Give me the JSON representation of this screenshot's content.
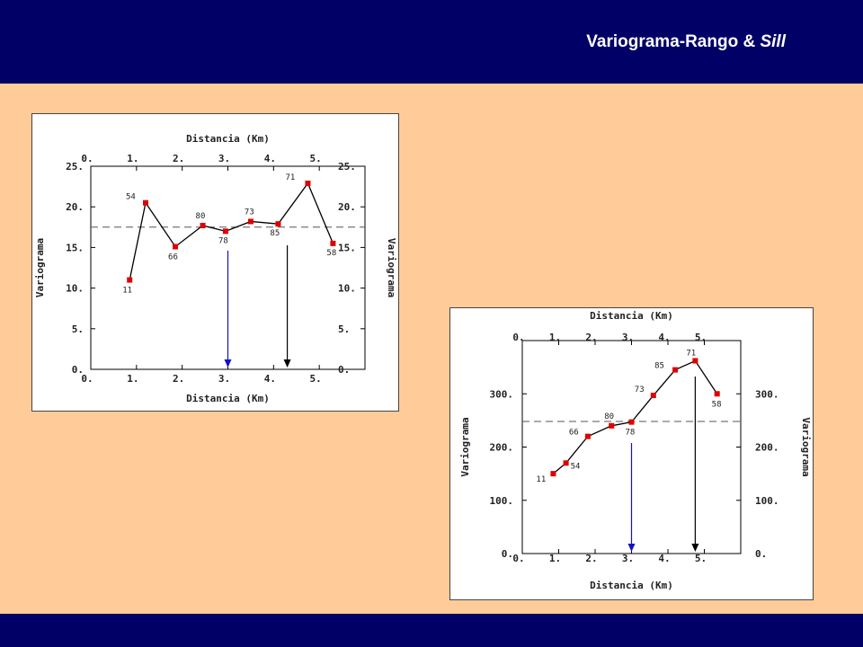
{
  "slide": {
    "title_main": "Variograma-Rango & ",
    "title_italic": "Sill",
    "colors": {
      "header": "#000066",
      "background": "#FFCC99",
      "point": "#DD0000",
      "arrow_blue": "#1111CC",
      "arrow_black": "#000000"
    }
  },
  "chart_data": [
    {
      "type": "line",
      "title": "Distancia (Km)",
      "xlabel": "Distancia (Km)",
      "ylabel": "Variograma",
      "y2label": "Variograma",
      "xlim": [
        0,
        6
      ],
      "ylim": [
        0,
        25
      ],
      "xticks": [
        0,
        1,
        2,
        3,
        4,
        5
      ],
      "xtick_labels": [
        "0.",
        "1.",
        "2.",
        "3.",
        "4.",
        "5."
      ],
      "yticks": [
        0,
        5,
        10,
        15,
        20,
        25
      ],
      "ytick_labels": [
        "0.",
        "5.",
        "10.",
        "15.",
        "20.",
        "25."
      ],
      "grid": false,
      "series": [
        {
          "x": [
            0.85,
            1.2,
            1.85,
            2.45,
            2.95,
            3.5,
            4.1,
            4.75,
            5.3
          ],
          "y": [
            11,
            20.5,
            15.1,
            17.7,
            17.0,
            18.2,
            17.9,
            22.9,
            15.5
          ],
          "point_labels": [
            "11",
            "54",
            "66",
            "80",
            "78",
            "73",
            "85",
            "71",
            "58"
          ]
        }
      ],
      "sill_line": 17.5,
      "arrows": [
        {
          "x": 3.0,
          "color": "blue"
        },
        {
          "x": 4.3,
          "color": "black"
        }
      ]
    },
    {
      "type": "line",
      "title": "Distancia (Km)",
      "xlabel": "Distancia (Km)",
      "ylabel": "Variograma",
      "y2label": "Variograma",
      "xlim": [
        0,
        6
      ],
      "ylim": [
        0,
        400
      ],
      "xticks": [
        0,
        1,
        2,
        3,
        4,
        5
      ],
      "xtick_labels": [
        "0.",
        "1.",
        "2.",
        "3.",
        "4.",
        "5."
      ],
      "yticks": [
        0,
        100,
        200,
        300
      ],
      "ytick_labels": [
        "0.",
        "100.",
        "200.",
        "300."
      ],
      "grid": false,
      "series": [
        {
          "x": [
            0.85,
            1.2,
            1.8,
            2.45,
            3.0,
            3.6,
            4.2,
            4.75,
            5.35
          ],
          "y": [
            150,
            170,
            220,
            240,
            247,
            297,
            345,
            362,
            300
          ],
          "point_labels": [
            "11",
            "54",
            "66",
            "80",
            "78",
            "73",
            "85",
            "71",
            "58"
          ]
        }
      ],
      "sill_line": 248,
      "arrows": [
        {
          "x": 3.0,
          "color": "blue"
        },
        {
          "x": 4.75,
          "color": "black"
        }
      ]
    }
  ]
}
